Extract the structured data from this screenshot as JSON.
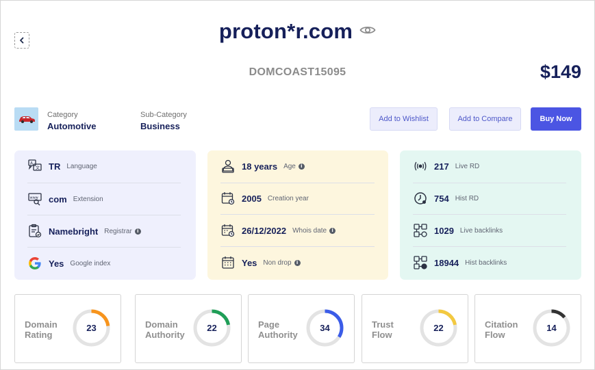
{
  "header": {
    "domain": "proton*r.com",
    "sku": "DOMCOAST15095",
    "price": "$149"
  },
  "category": {
    "category_label": "Category",
    "category_value": "Automotive",
    "subcategory_label": "Sub-Category",
    "subcategory_value": "Business"
  },
  "actions": {
    "wishlist": "Add to Wishlist",
    "compare": "Add to Compare",
    "buy": "Buy Now"
  },
  "panel_basic": {
    "bg": "#eff0fd",
    "rows": [
      {
        "icon": "language-icon",
        "value": "TR",
        "label": "Language",
        "info": false
      },
      {
        "icon": "extension-icon",
        "value": "com",
        "label": "Extension",
        "info": false
      },
      {
        "icon": "registrar-icon",
        "value": "Namebright",
        "label": "Registrar",
        "info": true
      },
      {
        "icon": "google-icon",
        "value": "Yes",
        "label": "Google index",
        "info": false
      }
    ]
  },
  "panel_age": {
    "bg": "#fdf6de",
    "rows": [
      {
        "icon": "age-icon",
        "value": "18 years",
        "label": "Age",
        "info": true
      },
      {
        "icon": "calendar-icon",
        "value": "2005",
        "label": "Creation year",
        "info": false
      },
      {
        "icon": "calendar-clock-icon",
        "value": "26/12/2022",
        "label": "Whois date",
        "info": true
      },
      {
        "icon": "calendar-grid-icon",
        "value": "Yes",
        "label": "Non drop",
        "info": true
      }
    ]
  },
  "panel_links": {
    "bg": "#e4f7f2",
    "rows": [
      {
        "icon": "broadcast-icon",
        "value": "217",
        "label": "Live RD",
        "info": false
      },
      {
        "icon": "history-icon",
        "value": "754",
        "label": "Hist RD",
        "info": false
      },
      {
        "icon": "backlinks-icon",
        "value": "1029",
        "label": "Live backlinks",
        "info": false
      },
      {
        "icon": "backlinks-history-icon",
        "value": "18944",
        "label": "Hist backlinks",
        "info": false
      }
    ]
  },
  "metrics": [
    {
      "name": "domain-rating",
      "label_1": "Domain",
      "label_2": "Rating",
      "value": 23,
      "color": "#f7941d"
    },
    {
      "name": "domain-authority",
      "label_1": "Domain",
      "label_2": "Authority",
      "value": 22,
      "color": "#1f9e57"
    },
    {
      "name": "page-authority",
      "label_1": "Page",
      "label_2": "Authority",
      "value": 34,
      "color": "#3b5ce8"
    },
    {
      "name": "trust-flow",
      "label_1": "Trust",
      "label_2": "Flow",
      "value": 22,
      "color": "#f3c940"
    },
    {
      "name": "citation-flow",
      "label_1": "Citation",
      "label_2": "Flow",
      "value": 14,
      "color": "#333333"
    }
  ]
}
